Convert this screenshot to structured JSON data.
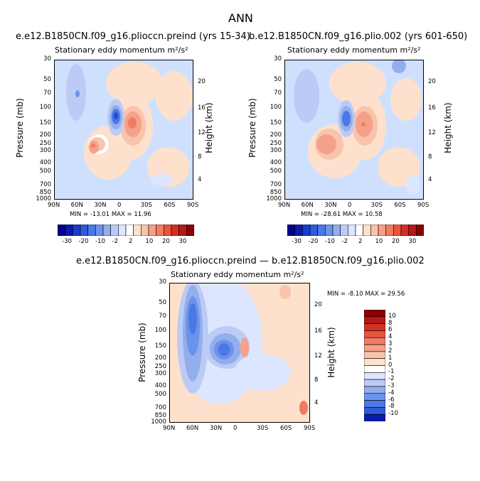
{
  "figure": {
    "title": "ANN"
  },
  "colors": {
    "light_blue_bg": "#cfe0ff",
    "white": "#ffffff",
    "peach": "#fde1cd",
    "salmon": "#f7b49c",
    "orange_red": "#f2725c",
    "blue_mid": "#93aeec",
    "blue_dark": "#4466de",
    "blue_deeper": "#2a45d0"
  },
  "chart_data": [
    {
      "type": "heatmap",
      "id": "panel1",
      "title": "e.e12.B1850CN.f09_g16.plioccn.preind (yrs 15-34)",
      "subtitle": "Stationary eddy momentum  m²/s²",
      "xlabel": "",
      "ylabel": "Pressure (mb)",
      "ylabel_right": "Height (km)",
      "x_ticks": [
        "90N",
        "60N",
        "30N",
        "0",
        "30S",
        "60S",
        "90S"
      ],
      "y_ticks": [
        "30",
        "50",
        "70",
        "100",
        "150",
        "200",
        "250",
        "300",
        "400",
        "500",
        "700",
        "850",
        "1000"
      ],
      "y_ticks_right": [
        "20",
        "16",
        "12",
        "8",
        "4"
      ],
      "stats": "MIN = -13.01   MAX =  11.96",
      "min": -13.01,
      "max": 11.96
    },
    {
      "type": "heatmap",
      "id": "panel2",
      "title": "b.e12.B1850CN.f09_g16.plio.002 (yrs 601-650)",
      "subtitle": "Stationary eddy momentum  m²/s²",
      "xlabel": "",
      "ylabel": "Pressure (mb)",
      "ylabel_right": "Height (km)",
      "x_ticks": [
        "90N",
        "60N",
        "30N",
        "0",
        "30S",
        "60S",
        "90S"
      ],
      "y_ticks": [
        "30",
        "50",
        "70",
        "100",
        "150",
        "200",
        "250",
        "300",
        "400",
        "500",
        "700",
        "850",
        "1000"
      ],
      "y_ticks_right": [
        "20",
        "16",
        "12",
        "8",
        "4"
      ],
      "stats": "MIN = -28.61   MAX =  10.58",
      "min": -28.61,
      "max": 10.58
    },
    {
      "type": "heatmap",
      "id": "panel3",
      "title": "e.e12.B1850CN.f09_g16.plioccn.preind — b.e12.B1850CN.f09_g16.plio.002",
      "subtitle": "Stationary eddy momentum  m²/s²",
      "xlabel": "",
      "ylabel": "Pressure (mb)",
      "ylabel_right": "Height (km)",
      "x_ticks": [
        "90N",
        "60N",
        "30N",
        "0",
        "30S",
        "60S",
        "90S"
      ],
      "y_ticks": [
        "30",
        "50",
        "70",
        "100",
        "150",
        "200",
        "250",
        "300",
        "400",
        "500",
        "700",
        "850",
        "1000"
      ],
      "y_ticks_right": [
        "20",
        "16",
        "12",
        "8",
        "4"
      ],
      "stats": "MIN =  -8.10   MAX =  29.56",
      "min": -8.1,
      "max": 29.56
    }
  ],
  "colorbar_top": {
    "labels": [
      "-30",
      "-20",
      "-10",
      "-2",
      "2",
      "10",
      "20",
      "30"
    ],
    "colors": [
      "#00008b",
      "#0a1bb0",
      "#1a3ccc",
      "#2f5ad9",
      "#4a78e4",
      "#6c93ec",
      "#93aeec",
      "#bccbf6",
      "#dde6ff",
      "#ffffff",
      "#fde1cd",
      "#f9c4ab",
      "#f5a08a",
      "#f07c62",
      "#e8543e",
      "#d33024",
      "#b51818",
      "#8b0000"
    ]
  },
  "colorbar_diff": {
    "labels": [
      "10",
      "8",
      "6",
      "4",
      "3",
      "2",
      "1",
      "0",
      "-1",
      "-2",
      "-3",
      "-4",
      "-6",
      "-8",
      "-10"
    ],
    "colors": [
      "#8b0000",
      "#b51818",
      "#d33024",
      "#e8543e",
      "#f07c62",
      "#f5a08a",
      "#f9c4ab",
      "#fde1cd",
      "#ffffff",
      "#dde6ff",
      "#bccbf6",
      "#93aeec",
      "#6c93ec",
      "#4a78e4",
      "#2f5ad9",
      "#0a1bb0"
    ]
  }
}
